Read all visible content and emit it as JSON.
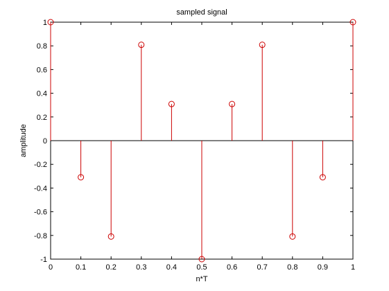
{
  "chart_data": {
    "type": "stem",
    "title": "sampled signal",
    "xlabel": "n*T",
    "ylabel": "amplitude",
    "xlim": [
      0,
      1
    ],
    "ylim": [
      -1,
      1
    ],
    "grid": false,
    "xticks": [
      0,
      0.1,
      0.2,
      0.3,
      0.4,
      0.5,
      0.6,
      0.7,
      0.8,
      0.9,
      1
    ],
    "xtick_labels": [
      "0",
      "0.1",
      "0.2",
      "0.3",
      "0.4",
      "0.5",
      "0.6",
      "0.7",
      "0.8",
      "0.9",
      "1"
    ],
    "yticks": [
      -1,
      -0.8,
      -0.6,
      -0.4,
      -0.2,
      0,
      0.2,
      0.4,
      0.6,
      0.8,
      1
    ],
    "ytick_labels": [
      "-1",
      "-0.8",
      "-0.6",
      "-0.4",
      "-0.2",
      "0",
      "0.2",
      "0.4",
      "0.6",
      "0.8",
      "1"
    ],
    "x": [
      0,
      0.1,
      0.2,
      0.3,
      0.4,
      0.5,
      0.6,
      0.7,
      0.8,
      0.9,
      1
    ],
    "y": [
      1,
      -0.309,
      -0.809,
      0.809,
      0.309,
      -1,
      0.309,
      0.809,
      -0.809,
      -0.309,
      1
    ],
    "stem_color": "#cc0000",
    "marker": "circle",
    "baseline_color": "#000000"
  }
}
